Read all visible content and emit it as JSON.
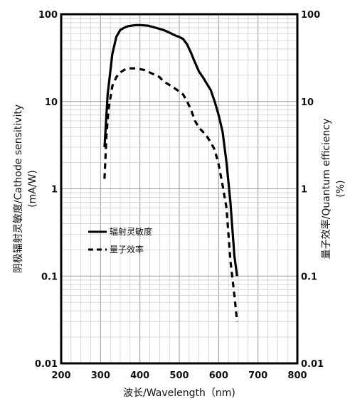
{
  "chart_data": {
    "type": "line",
    "title": "",
    "xlabel": "波长/Wavelength（nm)",
    "ylabel_left_line1": "阴极辐射灵敏度/Cathode sensitivity",
    "ylabel_left_line2": "(mA/W)",
    "ylabel_right_line1": "量子效率/Quantum efficiency",
    "ylabel_right_line2": "(%)",
    "xlim": [
      200,
      800
    ],
    "ylim": [
      0.01,
      100
    ],
    "yscale": "log",
    "grid": true,
    "legend_position": "center-left",
    "x_ticks": [
      "200",
      "300",
      "400",
      "500",
      "600",
      "700",
      "800"
    ],
    "y_ticks_left": [
      "0.01",
      "0.1",
      "1",
      "10",
      "100"
    ],
    "y_ticks_right": [
      "0.01",
      "0.1",
      "1",
      "10",
      "100"
    ],
    "series": [
      {
        "name": "辐射灵敏度",
        "style": "solid",
        "x": [
          310,
          318,
          330,
          340,
          350,
          360,
          370,
          380,
          390,
          400,
          410,
          420,
          430,
          440,
          450,
          460,
          470,
          480,
          490,
          500,
          510,
          520,
          530,
          540,
          550,
          560,
          570,
          580,
          590,
          600,
          610,
          620,
          630,
          640,
          647
        ],
        "y": [
          3.0,
          12.0,
          35.0,
          55.0,
          66.0,
          70.0,
          73.0,
          74.0,
          75.0,
          75.0,
          74.5,
          74.0,
          72.0,
          70.0,
          68.0,
          66.0,
          63.0,
          60.0,
          57.0,
          55.0,
          52.0,
          45.0,
          36.0,
          28.0,
          22.0,
          19.0,
          16.0,
          13.5,
          10.0,
          7.0,
          4.5,
          2.0,
          0.7,
          0.17,
          0.1
        ]
      },
      {
        "name": "量子效率",
        "style": "dashed",
        "x": [
          310,
          315,
          320,
          330,
          340,
          350,
          360,
          370,
          380,
          390,
          400,
          410,
          420,
          430,
          440,
          450,
          460,
          470,
          480,
          490,
          500,
          510,
          520,
          530,
          540,
          550,
          560,
          570,
          580,
          590,
          600,
          610,
          620,
          630,
          640,
          647
        ],
        "y": [
          1.3,
          4.0,
          8.0,
          15.0,
          19.0,
          21.5,
          23.0,
          24.0,
          24.0,
          24.0,
          23.5,
          23.0,
          22.0,
          21.0,
          20.0,
          19.0,
          17.0,
          16.0,
          15.0,
          14.0,
          13.0,
          12.0,
          10.0,
          8.0,
          6.0,
          5.0,
          4.5,
          4.0,
          3.4,
          2.8,
          1.9,
          1.1,
          0.6,
          0.15,
          0.06,
          0.03
        ]
      }
    ]
  }
}
